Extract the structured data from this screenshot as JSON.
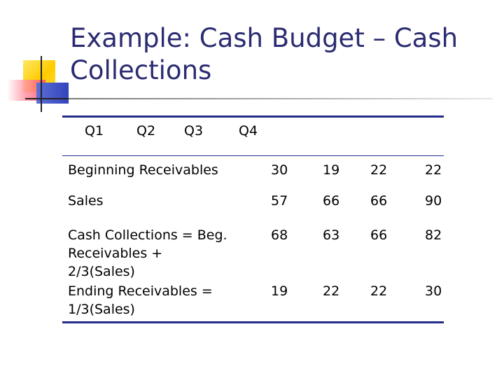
{
  "slide": {
    "title_line1": "Example: Cash Budget – Cash",
    "title_line2": "Collections"
  },
  "table": {
    "columns": [
      "Q1",
      "Q2",
      "Q3",
      "Q4"
    ],
    "rows": [
      {
        "label": "Beginning Receivables",
        "values": [
          "30",
          "19",
          "22",
          "22"
        ]
      },
      {
        "label": "Sales",
        "values": [
          "57",
          "66",
          "66",
          "90"
        ]
      },
      {
        "label_lines": [
          "Cash Collections = Beg.",
          "Receivables +",
          "2/3(Sales)"
        ],
        "values": [
          "68",
          "63",
          "66",
          "82"
        ]
      },
      {
        "label_lines": [
          "Ending Receivables =",
          "1/3(Sales)"
        ],
        "values": [
          "19",
          "22",
          "22",
          "30"
        ]
      }
    ]
  },
  "colors": {
    "title": "#2b2b72",
    "table_rule": "#232a88",
    "deco_yellow": "#ffcc00",
    "deco_red": "#ff4d66",
    "deco_blue": "#3344bb"
  }
}
